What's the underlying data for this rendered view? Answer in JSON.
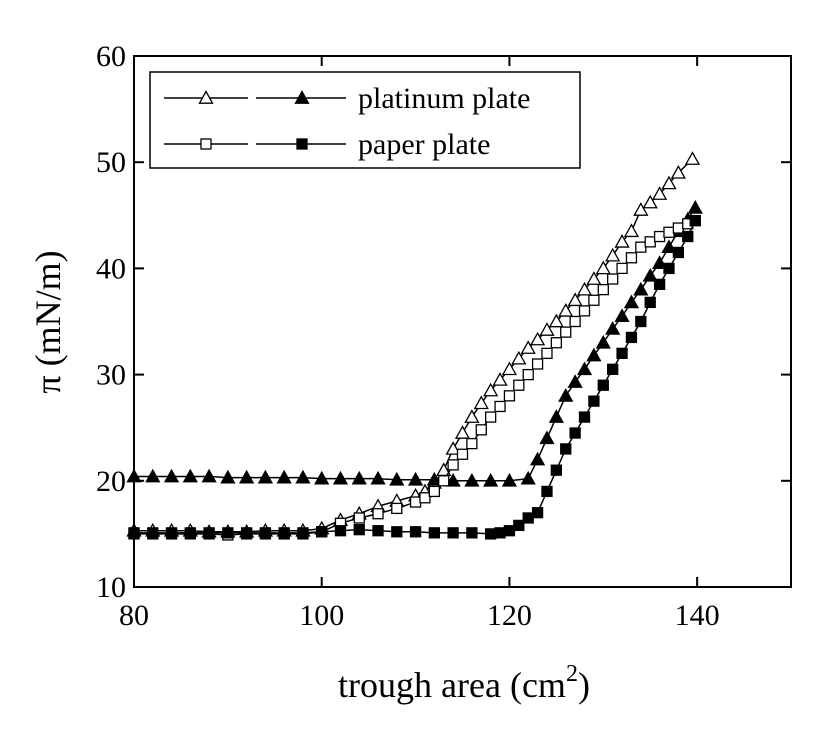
{
  "chart_data": {
    "type": "line",
    "xlabel": {
      "text": "trough area (cm",
      "sup": "2",
      "end": ")"
    },
    "ylabel": "π (mN/m)",
    "xlim": [
      80,
      150
    ],
    "xticks": [
      80,
      100,
      120,
      140
    ],
    "ylim": [
      10,
      60
    ],
    "yticks": [
      10,
      20,
      30,
      40,
      50,
      60
    ],
    "grid": false,
    "legend": "upper left",
    "series": [
      {
        "name": "platinum plate",
        "marker": "triangle",
        "color": "#000000",
        "curves": [
          {
            "fill": "open",
            "x": [
              80,
              82,
              84,
              86,
              88,
              90,
              92,
              94,
              96,
              98,
              100,
              102,
              104,
              106,
              108,
              110,
              111,
              112,
              113,
              114,
              115,
              116,
              117,
              118,
              119,
              120,
              121,
              122,
              123,
              124,
              125,
              126,
              127,
              128,
              129,
              130,
              131,
              132,
              133,
              134,
              135,
              136,
              137,
              138,
              139.5
            ],
            "values": [
              15.3,
              15.3,
              15.3,
              15.3,
              15.2,
              15.2,
              15.2,
              15.3,
              15.3,
              15.3,
              15.5,
              16.3,
              16.9,
              17.6,
              18.1,
              18.6,
              19.0,
              19.8,
              21.0,
              23.0,
              24.5,
              26.0,
              27.3,
              28.5,
              29.5,
              30.5,
              31.5,
              32.5,
              33.3,
              34.2,
              35.0,
              36.0,
              37.0,
              38.0,
              39.0,
              40.0,
              41.2,
              42.5,
              43.5,
              45.5,
              46.2,
              47.0,
              48.0,
              49.0,
              50.3
            ]
          },
          {
            "fill": "filled",
            "x": [
              80,
              82,
              84,
              86,
              88,
              90,
              92,
              94,
              96,
              98,
              100,
              102,
              104,
              106,
              108,
              110,
              112,
              114,
              116,
              118,
              120,
              122,
              123,
              124,
              125,
              126,
              127,
              128,
              129,
              130,
              131,
              132,
              133,
              134,
              135,
              136,
              137,
              138,
              139,
              139.8
            ],
            "values": [
              20.4,
              20.4,
              20.4,
              20.4,
              20.4,
              20.3,
              20.3,
              20.3,
              20.3,
              20.3,
              20.2,
              20.2,
              20.2,
              20.2,
              20.1,
              20.1,
              20.1,
              20.0,
              20.0,
              20.0,
              20.0,
              20.2,
              22.0,
              24.0,
              26.0,
              28.0,
              29.3,
              30.5,
              31.8,
              33.0,
              34.3,
              35.5,
              36.8,
              38.0,
              39.3,
              40.5,
              42.0,
              43.5,
              44.6,
              45.7
            ]
          }
        ]
      },
      {
        "name": "paper plate",
        "marker": "square",
        "color": "#000000",
        "curves": [
          {
            "fill": "open",
            "x": [
              80,
              82,
              84,
              86,
              88,
              90,
              92,
              94,
              96,
              98,
              100,
              102,
              104,
              106,
              108,
              110,
              111,
              112,
              113,
              114,
              115,
              116,
              117,
              118,
              119,
              120,
              121,
              122,
              123,
              124,
              125,
              126,
              127,
              128,
              129,
              130,
              131,
              132,
              133,
              134,
              135,
              136,
              137,
              138,
              139,
              139.8
            ],
            "values": [
              15.0,
              15.0,
              15.0,
              15.0,
              15.0,
              14.9,
              15.0,
              15.0,
              15.0,
              15.0,
              15.2,
              16.0,
              16.5,
              16.9,
              17.4,
              18.0,
              18.4,
              19.0,
              20.0,
              21.5,
              22.5,
              23.5,
              24.8,
              26.0,
              27.0,
              28.0,
              29.0,
              30.0,
              31.0,
              32.0,
              33.0,
              34.0,
              35.0,
              36.0,
              37.0,
              38.0,
              39.0,
              40.0,
              41.0,
              42.0,
              42.5,
              43.0,
              43.4,
              43.8,
              44.2,
              44.5
            ]
          },
          {
            "fill": "filled",
            "x": [
              80,
              82,
              84,
              86,
              88,
              90,
              92,
              94,
              96,
              98,
              100,
              102,
              104,
              106,
              108,
              110,
              112,
              114,
              116,
              118,
              119,
              120,
              121,
              122,
              123,
              124,
              125,
              126,
              127,
              128,
              129,
              130,
              131,
              132,
              133,
              134,
              135,
              136,
              137,
              138,
              139,
              139.8
            ],
            "values": [
              15.1,
              15.1,
              15.1,
              15.1,
              15.1,
              15.1,
              15.1,
              15.1,
              15.1,
              15.1,
              15.2,
              15.3,
              15.4,
              15.3,
              15.2,
              15.2,
              15.1,
              15.1,
              15.1,
              15.0,
              15.1,
              15.3,
              15.8,
              16.5,
              17.0,
              19.0,
              21.0,
              23.0,
              24.5,
              26.0,
              27.5,
              29.0,
              30.5,
              32.0,
              33.5,
              35.0,
              36.8,
              38.5,
              40.0,
              41.5,
              43.0,
              44.5
            ]
          }
        ]
      }
    ]
  }
}
